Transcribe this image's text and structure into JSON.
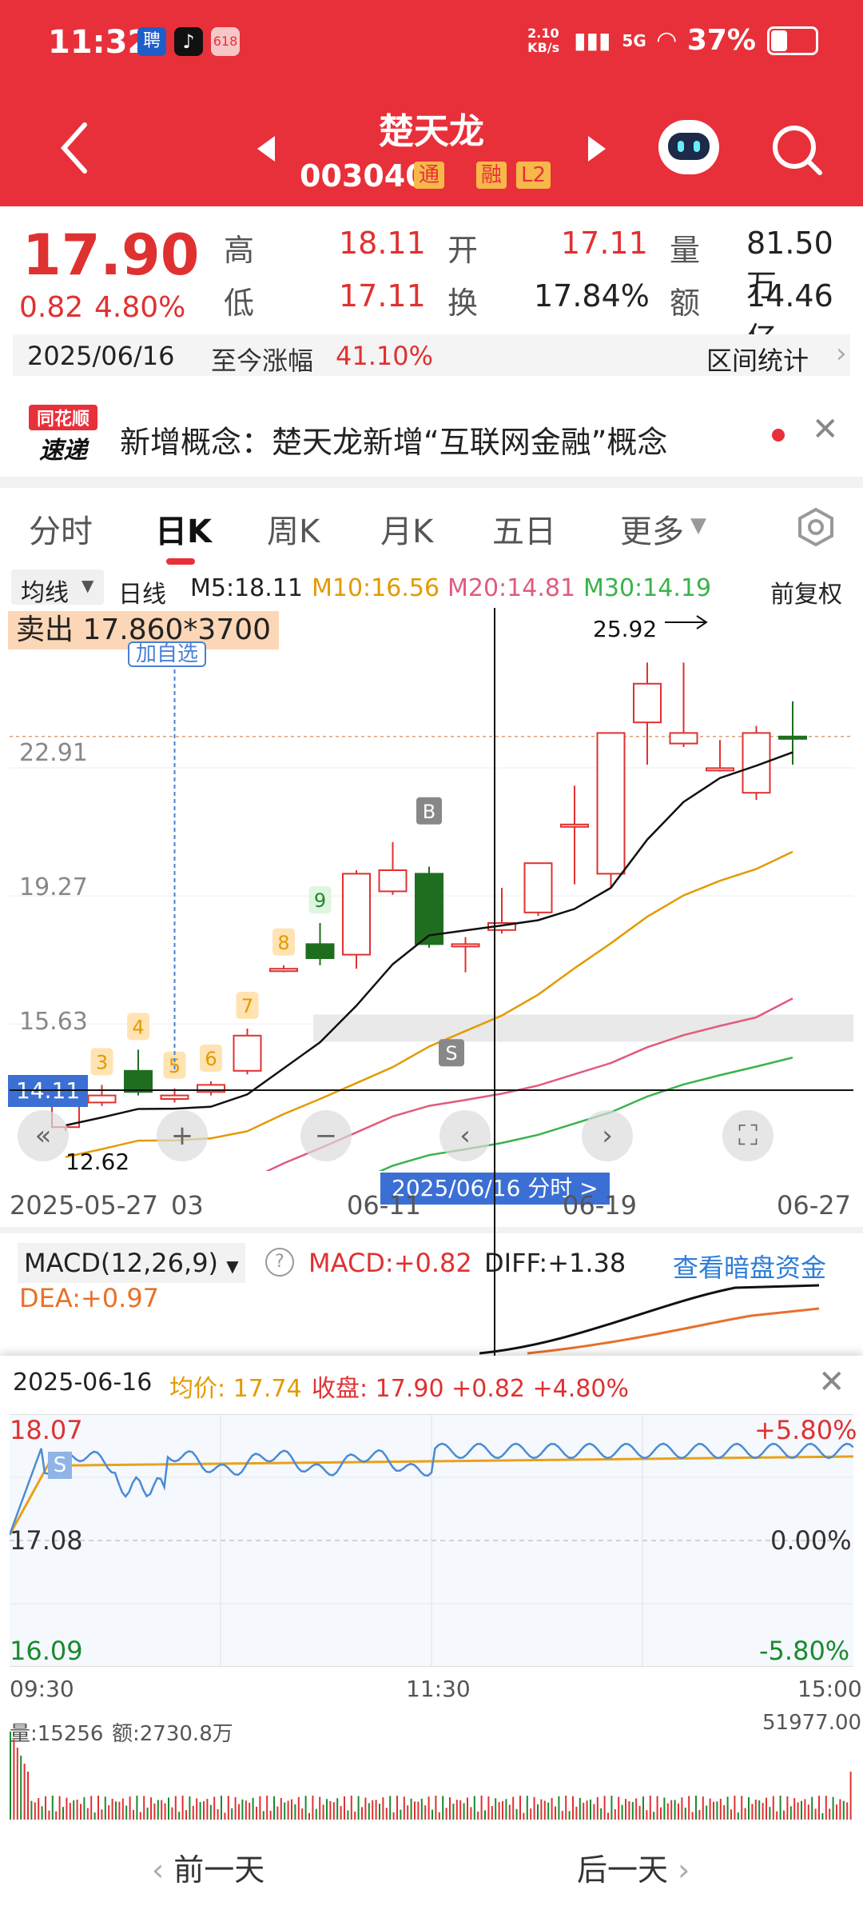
{
  "status_bar": {
    "time": "11:32",
    "net_speed": "2.10 KB/s",
    "signal": "5G",
    "battery": "37%"
  },
  "header": {
    "stock_name": "楚天龙",
    "stock_code": "003040",
    "tags": [
      "通",
      "融",
      "L2"
    ]
  },
  "quote": {
    "price": "17.90",
    "change": "0.82",
    "change_pct": "4.80%",
    "high_label": "高",
    "high": "18.11",
    "open_label": "开",
    "open": "17.11",
    "vol_label": "量",
    "volume": "81.50万",
    "low_label": "低",
    "low": "17.11",
    "turnover_label": "换",
    "turnover": "17.84%",
    "amount_label": "额",
    "amount": "14.46亿",
    "date": "2025/06/16",
    "gain_label": "至今涨幅",
    "gain": "41.10%",
    "range_stats": "区间统计"
  },
  "news": {
    "logo_top": "同花顺",
    "logo_bottom": "速递",
    "text": "新增概念：楚天龙新增“互联网金融”概念"
  },
  "tabs": [
    "分时",
    "日K",
    "周K",
    "月K",
    "五日",
    "更多"
  ],
  "ma_bar": {
    "select": "均线",
    "line": "日线",
    "m5": "M5:18.11",
    "m10": "M10:16.56",
    "m20": "M20:14.81",
    "m30": "M30:14.19",
    "fq": "前复权"
  },
  "kchart": {
    "sell_label": "卖出 17.860*3700",
    "max_label": "25.92",
    "added_label": "加自选",
    "price_ticks": [
      "22.91",
      "19.27",
      "15.63"
    ],
    "cross_price": "14.11",
    "min_label": "12.62",
    "dates": [
      "2025-05-27",
      "03",
      "06-11",
      "06-19",
      "06-27"
    ],
    "cursor_date": "2025/06/16 分时 >",
    "marks": [
      "3",
      "4",
      "5",
      "6",
      "7",
      "8",
      "9",
      "B",
      "S"
    ]
  },
  "chart_data": {
    "type": "candlestick",
    "candles": [
      {
        "o": 12.7,
        "c": 13.4,
        "h": 13.6,
        "l": 12.6,
        "up": true
      },
      {
        "o": 13.4,
        "c": 13.6,
        "h": 13.9,
        "l": 13.3,
        "up": true
      },
      {
        "o": 14.3,
        "c": 13.7,
        "h": 14.9,
        "l": 13.6,
        "up": false
      },
      {
        "o": 13.5,
        "c": 13.6,
        "h": 13.8,
        "l": 13.4,
        "up": true
      },
      {
        "o": 13.7,
        "c": 13.9,
        "h": 14.0,
        "l": 13.6,
        "up": true
      },
      {
        "o": 14.3,
        "c": 15.3,
        "h": 15.5,
        "l": 14.2,
        "up": true
      },
      {
        "o": 17.2,
        "c": 17.2,
        "h": 17.3,
        "l": 17.1,
        "up": true
      },
      {
        "o": 17.9,
        "c": 17.5,
        "h": 18.5,
        "l": 17.3,
        "up": false
      },
      {
        "o": 17.6,
        "c": 19.9,
        "h": 20.0,
        "l": 17.2,
        "up": true
      },
      {
        "o": 19.4,
        "c": 20.0,
        "h": 20.8,
        "l": 19.3,
        "up": true
      },
      {
        "o": 19.9,
        "c": 17.9,
        "h": 20.1,
        "l": 17.8,
        "up": false
      },
      {
        "o": 17.9,
        "c": 17.9,
        "h": 18.1,
        "l": 17.1,
        "up": true
      },
      {
        "o": 18.3,
        "c": 18.5,
        "h": 19.5,
        "l": 18.2,
        "up": true
      },
      {
        "o": 18.8,
        "c": 20.2,
        "h": 20.2,
        "l": 18.7,
        "up": true
      },
      {
        "o": 21.3,
        "c": 21.3,
        "h": 22.4,
        "l": 19.6,
        "up": true
      },
      {
        "o": 19.9,
        "c": 23.9,
        "h": 23.9,
        "l": 19.5,
        "up": true
      },
      {
        "o": 24.2,
        "c": 25.3,
        "h": 25.9,
        "l": 23.0,
        "up": true
      },
      {
        "o": 23.6,
        "c": 23.9,
        "h": 25.9,
        "l": 23.5,
        "up": true
      },
      {
        "o": 22.9,
        "c": 22.9,
        "h": 23.7,
        "l": 22.8,
        "up": true
      },
      {
        "o": 22.2,
        "c": 23.9,
        "h": 24.1,
        "l": 22.0,
        "up": true
      },
      {
        "o": 23.8,
        "c": 23.8,
        "h": 24.8,
        "l": 23.0,
        "up": false
      }
    ],
    "ylim": [
      12.0,
      27.0
    ]
  },
  "macd": {
    "label": "MACD(12,26,9)",
    "macd": "MACD:+0.82",
    "diff": "DIFF:+1.38",
    "dea": "DEA:+0.97",
    "link": "查看暗盘资金"
  },
  "intraday": {
    "date": "2025-06-16",
    "avg": "均价: 17.74",
    "close": "收盘: 17.90 +0.82 +4.80%",
    "top": "18.07",
    "mid": "17.08",
    "bottom": "16.09",
    "top_pct": "+5.80%",
    "mid_pct": "0.00%",
    "bottom_pct": "-5.80%",
    "t_start": "09:30",
    "t_mid": "11:30",
    "t_end": "15:00",
    "vol": "量:15256",
    "amt": "额:2730.8万",
    "vol_max": "51977.00",
    "prev": "前一天",
    "next": "后一天"
  }
}
